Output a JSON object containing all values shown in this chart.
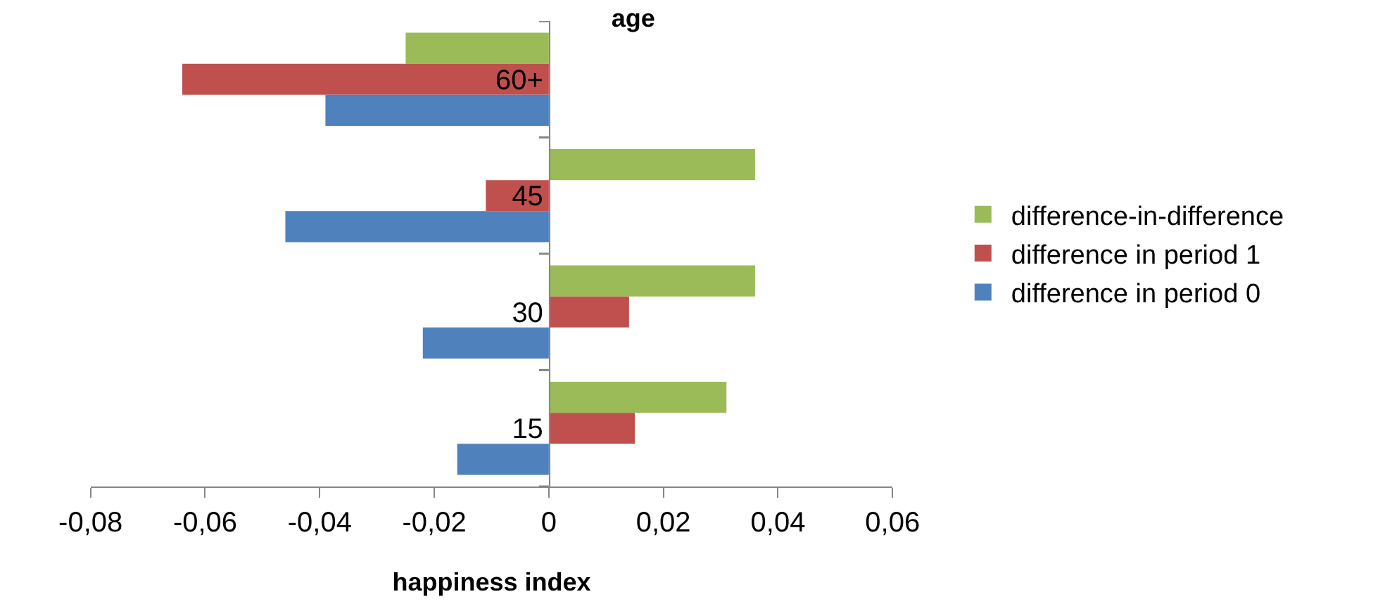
{
  "chart_data": {
    "type": "bar",
    "orientation": "horizontal",
    "title": "age",
    "xlabel": "happiness index",
    "categories": [
      "60+",
      "45",
      "30",
      "15"
    ],
    "series": [
      {
        "name": "difference-in-difference",
        "color": "#9bbb59",
        "values": [
          -0.025,
          0.036,
          0.036,
          0.031
        ]
      },
      {
        "name": "difference in period 1",
        "color": "#c0504d",
        "values": [
          -0.064,
          -0.011,
          0.014,
          0.015
        ]
      },
      {
        "name": "difference in period 0",
        "color": "#4f81bd",
        "values": [
          -0.039,
          -0.046,
          -0.022,
          -0.016
        ]
      }
    ],
    "xlim": [
      -0.08,
      0.06
    ],
    "xticks": [
      {
        "value": -0.08,
        "label": "-0,08"
      },
      {
        "value": -0.06,
        "label": "-0,06"
      },
      {
        "value": -0.04,
        "label": "-0,04"
      },
      {
        "value": -0.02,
        "label": "-0,02"
      },
      0,
      {
        "value": 0.02,
        "label": "0,02"
      },
      {
        "value": 0.04,
        "label": "0,04"
      },
      {
        "value": 0.06,
        "label": "0,06"
      }
    ],
    "legend": "right"
  }
}
